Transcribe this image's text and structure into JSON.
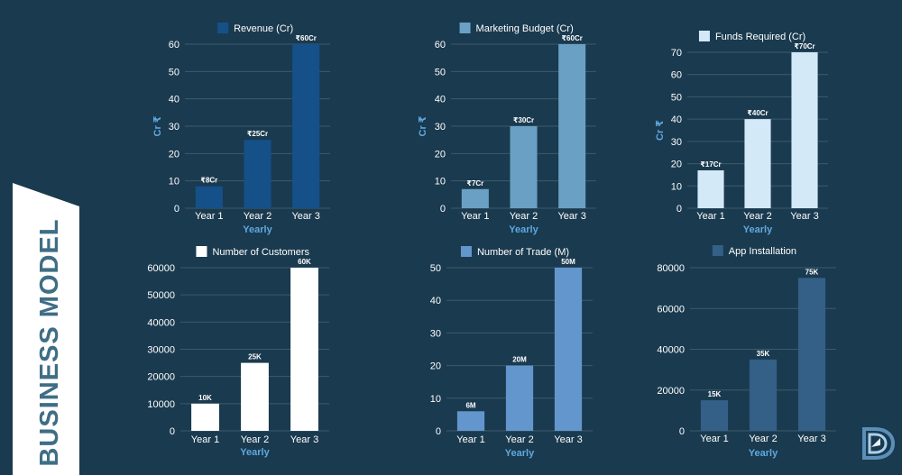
{
  "banner": {
    "title": "BUSINESS MODEL",
    "color": "#ffffff",
    "text_color": "#3f6e85"
  },
  "colors": {
    "background": "#1a3a4f",
    "axis_title": "#5fa8e0"
  },
  "chart_data": [
    {
      "type": "bar",
      "legend": "Revenue (Cr)",
      "color": "#155089",
      "categories": [
        "Year 1",
        "Year 2",
        "Year 3"
      ],
      "values": [
        8,
        25,
        60
      ],
      "data_labels": [
        "₹8Cr",
        "₹25Cr",
        "₹60Cr"
      ],
      "xlabel": "Yearly",
      "ylabel": "Cr ₹",
      "ylim": [
        0,
        60
      ],
      "yticks": [
        0,
        10,
        20,
        30,
        40,
        50,
        60
      ],
      "grid": true,
      "legend_position": "top-center"
    },
    {
      "type": "bar",
      "legend": "Marketing Budget (Cr)",
      "color": "#6aa0c4",
      "categories": [
        "Year 1",
        "Year 2",
        "Year 3"
      ],
      "values": [
        7,
        30,
        60
      ],
      "data_labels": [
        "₹7Cr",
        "₹30Cr",
        "₹60Cr"
      ],
      "xlabel": "Yearly",
      "ylabel": "Cr ₹",
      "ylim": [
        0,
        60
      ],
      "yticks": [
        0,
        10,
        20,
        30,
        40,
        50,
        60
      ],
      "grid": true,
      "legend_position": "top-center"
    },
    {
      "type": "bar",
      "legend": "Funds Required (Cr)",
      "color": "#d4e9f8",
      "categories": [
        "Year 1",
        "Year 2",
        "Year 3"
      ],
      "values": [
        17,
        40,
        70
      ],
      "data_labels": [
        "₹17Cr",
        "₹40Cr",
        "₹70Cr"
      ],
      "xlabel": "Yearly",
      "ylabel": "Cr ₹",
      "ylim": [
        0,
        70
      ],
      "yticks": [
        0,
        10,
        20,
        30,
        40,
        50,
        60,
        70
      ],
      "grid": true,
      "legend_position": "top-center"
    },
    {
      "type": "bar",
      "legend": "Number of Customers",
      "color": "#ffffff",
      "categories": [
        "Year 1",
        "Year 2",
        "Year 3"
      ],
      "values": [
        10000,
        25000,
        60000
      ],
      "data_labels": [
        "10K",
        "25K",
        "60K"
      ],
      "xlabel": "Yearly",
      "ylabel": "",
      "ylim": [
        0,
        60000
      ],
      "yticks": [
        0,
        10000,
        20000,
        30000,
        40000,
        50000,
        60000
      ],
      "grid": true,
      "legend_position": "top-center"
    },
    {
      "type": "bar",
      "legend": "Number of Trade (M)",
      "color": "#6396cc",
      "categories": [
        "Year 1",
        "Year 2",
        "Year 3"
      ],
      "values": [
        6,
        20,
        50
      ],
      "data_labels": [
        "6M",
        "20M",
        "50M"
      ],
      "xlabel": "Yearly",
      "ylabel": "",
      "ylim": [
        0,
        50
      ],
      "yticks": [
        0,
        10,
        20,
        30,
        40,
        50
      ],
      "grid": true,
      "legend_position": "top-center"
    },
    {
      "type": "bar",
      "legend": "App Installation",
      "color": "#345f86",
      "categories": [
        "Year 1",
        "Year 2",
        "Year 3"
      ],
      "values": [
        15000,
        35000,
        75000
      ],
      "data_labels": [
        "15K",
        "35K",
        "75K"
      ],
      "xlabel": "Yearly",
      "ylabel": "",
      "ylim": [
        0,
        80000
      ],
      "yticks": [
        0,
        20000,
        40000,
        60000,
        80000
      ],
      "grid": true,
      "legend_position": "top-center"
    }
  ]
}
